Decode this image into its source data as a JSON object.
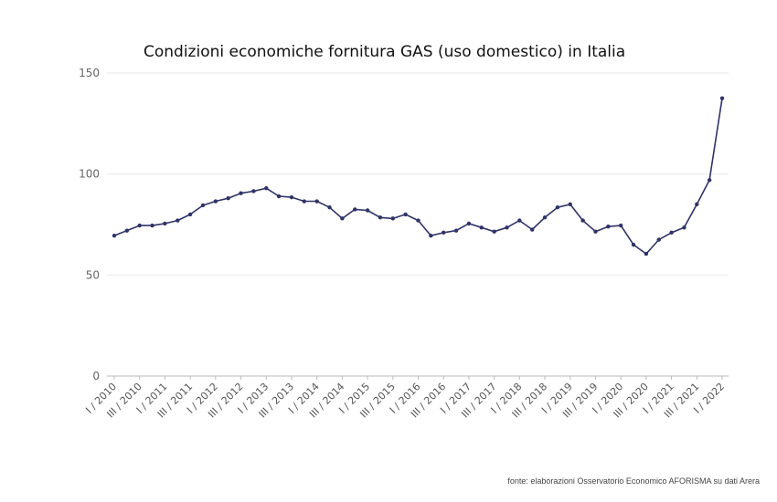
{
  "chart_data": {
    "type": "line",
    "title": "Condizioni economiche fornitura GAS (uso domestico) in Italia",
    "source": "fonte: elaborazioni Osservatorio Economico AFORISMA su dati Arera",
    "xlabel": "",
    "ylabel": "",
    "ylim": [
      0,
      150
    ],
    "yticks": [
      "0",
      "50",
      "100",
      "150"
    ],
    "grid": true,
    "line_color": "#2f3368",
    "x": [
      "I / 2010",
      "II / 2010",
      "III / 2010",
      "IV / 2010",
      "I / 2011",
      "II / 2011",
      "III / 2011",
      "IV / 2011",
      "I / 2012",
      "II / 2012",
      "III / 2012",
      "IV / 2012",
      "I / 2013",
      "II / 2013",
      "III / 2013",
      "IV / 2013",
      "I / 2014",
      "II / 2014",
      "III / 2014",
      "IV / 2014",
      "I / 2015",
      "II / 2015",
      "III / 2015",
      "IV / 2015",
      "I / 2016",
      "II / 2016",
      "III / 2016",
      "IV / 2016",
      "I / 2017",
      "II / 2017",
      "III / 2017",
      "IV / 2017",
      "I / 2018",
      "II / 2018",
      "III / 2018",
      "IV / 2018",
      "I / 2019",
      "II / 2019",
      "III / 2019",
      "IV / 2019",
      "I / 2020",
      "II / 2020",
      "III / 2020",
      "IV / 2020",
      "I / 2021",
      "II / 2021",
      "III / 2021",
      "IV / 2021",
      "I / 2022"
    ],
    "xtick_labels": [
      "I / 2010",
      "III / 2010",
      "I / 2011",
      "III / 2011",
      "I / 2012",
      "III / 2012",
      "I / 2013",
      "III / 2013",
      "I / 2014",
      "III / 2014",
      "I / 2015",
      "III / 2015",
      "I / 2016",
      "III / 2016",
      "I / 2017",
      "III / 2017",
      "I / 2018",
      "III / 2018",
      "I / 2019",
      "III / 2019",
      "I / 2020",
      "III / 2020",
      "I / 2021",
      "III / 2021",
      "I / 2022"
    ],
    "series": [
      {
        "values": [
          69.5,
          72,
          74.5,
          74.5,
          75.5,
          77,
          80,
          84.5,
          86.5,
          88,
          90.5,
          91.5,
          93,
          89,
          88.5,
          86.5,
          86.5,
          83.5,
          78,
          82.5,
          82,
          78.5,
          78,
          80,
          77,
          69.5,
          71,
          72,
          75.5,
          73.5,
          71.5,
          73.5,
          77,
          72.5,
          78.5,
          83.5,
          85,
          77,
          71.5,
          74,
          74.5,
          65,
          60.5,
          67.5,
          71,
          73.5,
          85,
          97,
          137.5
        ]
      }
    ]
  }
}
